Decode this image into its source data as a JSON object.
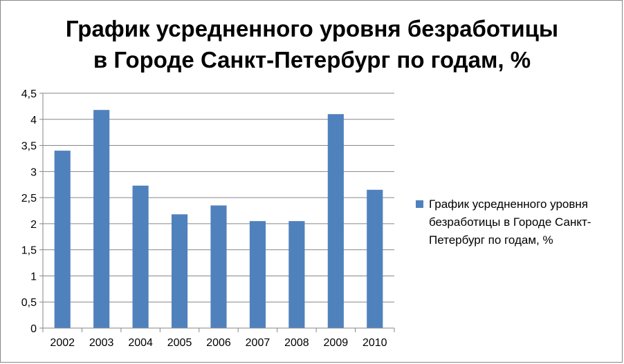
{
  "chart_data": {
    "type": "bar",
    "title_lines": [
      "График усредненного уровня безработицы",
      "в Городе Санкт-Петербург по годам, %"
    ],
    "xlabel": "",
    "ylabel": "",
    "categories": [
      "2002",
      "2003",
      "2004",
      "2005",
      "2006",
      "2007",
      "2008",
      "2009",
      "2010"
    ],
    "series": [
      {
        "name": "График усредненного уровня безработицы в Городе Санкт-Петербург по годам, %",
        "values": [
          3.4,
          4.18,
          2.73,
          2.18,
          2.35,
          2.05,
          2.05,
          4.1,
          2.65
        ],
        "color": "#4f81bd"
      }
    ],
    "ylim": [
      0,
      4.5
    ],
    "yticks": [
      "0",
      "0,5",
      "1",
      "1,5",
      "2",
      "2,5",
      "3",
      "3,5",
      "4",
      "4,5"
    ],
    "grid": true,
    "legend_position": "right"
  }
}
